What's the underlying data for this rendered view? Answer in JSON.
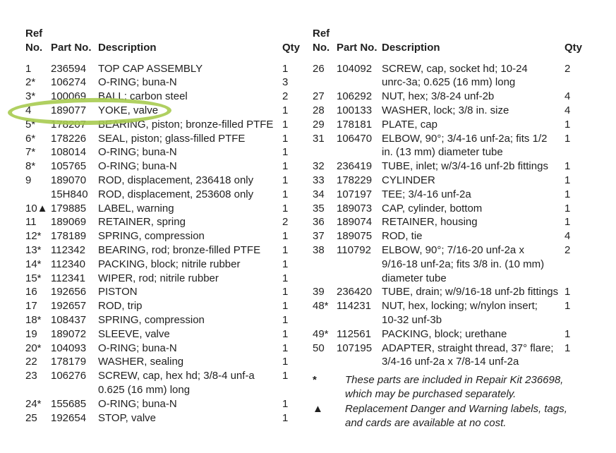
{
  "page": {
    "background_color": "#ffffff",
    "text_color": "#1f1f1f",
    "highlight": {
      "shape": "ellipse",
      "color": "#a7cb50",
      "highlighted_ref": "4",
      "highlighted_part": "189077"
    }
  },
  "left_table": {
    "header": {
      "ref_line1": "Ref",
      "ref_line2": "No.",
      "part": "Part No.",
      "desc": "Description",
      "qty": "Qty"
    },
    "rows": [
      {
        "ref": "1",
        "part": "236594",
        "desc": "TOP CAP ASSEMBLY",
        "qty": "1"
      },
      {
        "ref": "2*",
        "part": "106274",
        "desc": "O-RING; buna-N",
        "qty": "3"
      },
      {
        "ref": "3*",
        "part": "100069",
        "desc": "BALL; carbon steel",
        "qty": "2"
      },
      {
        "ref": "4",
        "part": "189077",
        "desc": "YOKE, valve",
        "qty": "1",
        "highlight": true
      },
      {
        "ref": "5*",
        "part": "178207",
        "desc": "BEARING, piston; bronze-filled PTFE",
        "qty": "1"
      },
      {
        "ref": "6*",
        "part": "178226",
        "desc": "SEAL, piston; glass-filled PTFE",
        "qty": "1"
      },
      {
        "ref": "7*",
        "part": "108014",
        "desc": "O-RING; buna-N",
        "qty": "1"
      },
      {
        "ref": "8*",
        "part": "105765",
        "desc": "O-RING; buna-N",
        "qty": "1"
      },
      {
        "ref": "9",
        "part": "189070",
        "desc": "ROD, displacement, 236418 only",
        "qty": "1"
      },
      {
        "ref": "",
        "part": "15H840",
        "desc": "ROD, displacement, 253608 only",
        "qty": "1"
      },
      {
        "ref": "10▲",
        "part": "179885",
        "desc": "LABEL, warning",
        "qty": "1"
      },
      {
        "ref": "11",
        "part": "189069",
        "desc": "RETAINER, spring",
        "qty": "2"
      },
      {
        "ref": "12*",
        "part": "178189",
        "desc": "SPRING, compression",
        "qty": "1"
      },
      {
        "ref": "13*",
        "part": "112342",
        "desc": "BEARING, rod; bronze-filled PTFE",
        "qty": "1"
      },
      {
        "ref": "14*",
        "part": "112340",
        "desc": "PACKING, block; nitrile rubber",
        "qty": "1"
      },
      {
        "ref": "15*",
        "part": "112341",
        "desc": "WIPER, rod; nitrile rubber",
        "qty": "1"
      },
      {
        "ref": "16",
        "part": "192656",
        "desc": "PISTON",
        "qty": "1"
      },
      {
        "ref": "17",
        "part": "192657",
        "desc": "ROD, trip",
        "qty": "1"
      },
      {
        "ref": "18*",
        "part": "108437",
        "desc": "SPRING, compression",
        "qty": "1"
      },
      {
        "ref": "19",
        "part": "189072",
        "desc": "SLEEVE, valve",
        "qty": "1"
      },
      {
        "ref": "20*",
        "part": "104093",
        "desc": "O-RING; buna-N",
        "qty": "1"
      },
      {
        "ref": "22",
        "part": "178179",
        "desc": "WASHER, sealing",
        "qty": "1"
      },
      {
        "ref": "23",
        "part": "106276",
        "desc": "SCREW, cap, hex hd; 3/8-4 unf-a\n0.625 (16 mm) long",
        "qty": "1"
      },
      {
        "ref": "24*",
        "part": "155685",
        "desc": "O-RING; buna-N",
        "qty": "1"
      },
      {
        "ref": "25",
        "part": "192654",
        "desc": "STOP, valve",
        "qty": "1"
      }
    ]
  },
  "right_table": {
    "header": {
      "ref_line1": "Ref",
      "ref_line2": "No.",
      "part": "Part No.",
      "desc": "Description",
      "qty": "Qty"
    },
    "rows": [
      {
        "ref": "26",
        "part": "104092",
        "desc": "SCREW, cap, socket hd; 10-24\nunrc-3a; 0.625 (16 mm) long",
        "qty": "2"
      },
      {
        "ref": "27",
        "part": "106292",
        "desc": "NUT, hex; 3/8-24 unf-2b",
        "qty": "4"
      },
      {
        "ref": "28",
        "part": "100133",
        "desc": "WASHER, lock; 3/8 in. size",
        "qty": "4"
      },
      {
        "ref": "29",
        "part": "178181",
        "desc": "PLATE, cap",
        "qty": "1"
      },
      {
        "ref": "31",
        "part": "106470",
        "desc": "ELBOW, 90°; 3/4-16 unf-2a; fits 1/2\nin. (13 mm) diameter tube",
        "qty": "1"
      },
      {
        "ref": "32",
        "part": "236419",
        "desc": "TUBE, inlet; w/3/4-16 unf-2b fittings",
        "qty": "1"
      },
      {
        "ref": "33",
        "part": "178229",
        "desc": "CYLINDER",
        "qty": "1"
      },
      {
        "ref": "34",
        "part": "107197",
        "desc": "TEE; 3/4-16 unf-2a",
        "qty": "1"
      },
      {
        "ref": "35",
        "part": "189073",
        "desc": "CAP, cylinder, bottom",
        "qty": "1"
      },
      {
        "ref": "36",
        "part": "189074",
        "desc": "RETAINER, housing",
        "qty": "1"
      },
      {
        "ref": "37",
        "part": "189075",
        "desc": "ROD, tie",
        "qty": "4"
      },
      {
        "ref": "38",
        "part": "110792",
        "desc": "ELBOW, 90°; 7/16-20 unf-2a x\n9/16-18 unf-2a; fits 3/8 in. (10 mm)\ndiameter tube",
        "qty": "2"
      },
      {
        "ref": "39",
        "part": "236420",
        "desc": "TUBE, drain; w/9/16-18 unf-2b fittings",
        "qty": "1"
      },
      {
        "ref": "48*",
        "part": "114231",
        "desc": "NUT, hex, locking; w/nylon insert;\n10-32 unf-3b",
        "qty": "1"
      },
      {
        "ref": "49*",
        "part": "112561",
        "desc": "PACKING, block; urethane",
        "qty": "1"
      },
      {
        "ref": "50",
        "part": "107195",
        "desc": "ADAPTER, straight thread, 37° flare;\n3/4-16 unf-2a x 7/8-14 unf-2a",
        "qty": "1"
      }
    ]
  },
  "footnotes": [
    {
      "marker": "*",
      "text": "These parts are included in Repair Kit 236698,\nwhich may be purchased separately."
    },
    {
      "marker": "▲",
      "text": "Replacement Danger and Warning labels, tags,\nand cards are available at no cost."
    }
  ]
}
